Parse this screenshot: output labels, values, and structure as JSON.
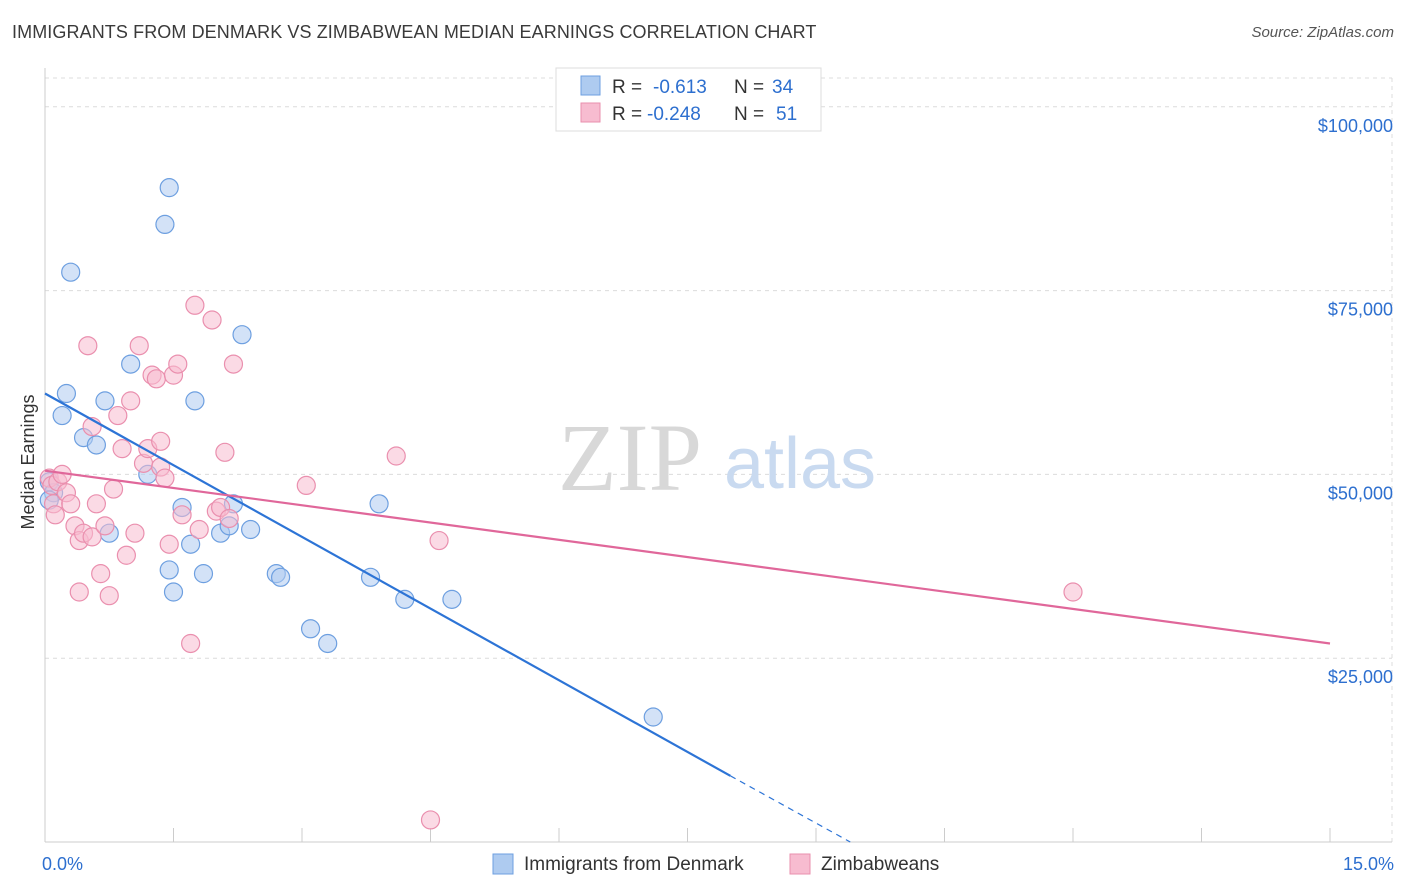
{
  "title": "IMMIGRANTS FROM DENMARK VS ZIMBABWEAN MEDIAN EARNINGS CORRELATION CHART",
  "source": "Source: ZipAtlas.com",
  "watermark": {
    "zip": "ZIP",
    "atlas": "atlas"
  },
  "chart_data": {
    "type": "scatter",
    "ylabel": "Median Earnings",
    "xlim": [
      0,
      15
    ],
    "ylim": [
      0,
      105000
    ],
    "x_ticks": [
      {
        "value": 0,
        "label": "0.0%"
      },
      {
        "value": 15,
        "label": "15.0%"
      }
    ],
    "y_ticks": [
      {
        "value": 25000,
        "label": "$25,000"
      },
      {
        "value": 50000,
        "label": "$50,000"
      },
      {
        "value": 75000,
        "label": "$75,000"
      },
      {
        "value": 100000,
        "label": "$100,000"
      }
    ],
    "grid": true,
    "legend_position": "top-center",
    "stats": [
      {
        "r_label": "R =",
        "r_value": "-0.613",
        "n_label": "N =",
        "n_value": "34"
      },
      {
        "r_label": "R =",
        "r_value": "-0.248",
        "n_label": "N =",
        "n_value": "51"
      }
    ],
    "series": [
      {
        "name": "Immigrants from Denmark",
        "fill": "#aecbf0",
        "stroke": "#6d9fe0",
        "line_color": "#2d74d6",
        "trend": {
          "x0": 0,
          "y0": 61000,
          "x1": 8.0,
          "y1": 9000,
          "dash_x1": 9.4,
          "dash_y1": 0
        },
        "points": [
          [
            0.05,
            49000
          ],
          [
            0.1,
            47500
          ],
          [
            0.05,
            46500
          ],
          [
            0.2,
            58000
          ],
          [
            0.25,
            61000
          ],
          [
            0.3,
            77500
          ],
          [
            0.45,
            55000
          ],
          [
            0.6,
            54000
          ],
          [
            0.7,
            60000
          ],
          [
            0.75,
            42000
          ],
          [
            1.0,
            65000
          ],
          [
            1.2,
            50000
          ],
          [
            1.4,
            84000
          ],
          [
            1.5,
            34000
          ],
          [
            1.45,
            37000
          ],
          [
            1.45,
            89000
          ],
          [
            1.6,
            45500
          ],
          [
            1.7,
            40500
          ],
          [
            1.75,
            60000
          ],
          [
            1.85,
            36500
          ],
          [
            2.05,
            42000
          ],
          [
            2.2,
            46000
          ],
          [
            2.15,
            43000
          ],
          [
            2.3,
            69000
          ],
          [
            2.4,
            42500
          ],
          [
            2.7,
            36500
          ],
          [
            2.75,
            36000
          ],
          [
            3.1,
            29000
          ],
          [
            3.3,
            27000
          ],
          [
            3.8,
            36000
          ],
          [
            3.9,
            46000
          ],
          [
            4.2,
            33000
          ],
          [
            4.75,
            33000
          ],
          [
            7.1,
            17000
          ]
        ]
      },
      {
        "name": "Zimbabweans",
        "fill": "#f7bcd0",
        "stroke": "#ea8fae",
        "line_color": "#e0679a",
        "trend": {
          "x0": 0,
          "y0": 50500,
          "x1": 15,
          "y1": 27000
        },
        "points": [
          [
            0.05,
            49500
          ],
          [
            0.08,
            48500
          ],
          [
            0.1,
            46000
          ],
          [
            0.12,
            44500
          ],
          [
            0.15,
            49000
          ],
          [
            0.2,
            50000
          ],
          [
            0.25,
            47500
          ],
          [
            0.3,
            46000
          ],
          [
            0.35,
            43000
          ],
          [
            0.4,
            41000
          ],
          [
            0.4,
            34000
          ],
          [
            0.45,
            42000
          ],
          [
            0.5,
            67500
          ],
          [
            0.55,
            56500
          ],
          [
            0.55,
            41500
          ],
          [
            0.6,
            46000
          ],
          [
            0.65,
            36500
          ],
          [
            0.7,
            43000
          ],
          [
            0.75,
            33500
          ],
          [
            0.8,
            48000
          ],
          [
            0.85,
            58000
          ],
          [
            0.9,
            53500
          ],
          [
            0.95,
            39000
          ],
          [
            1.0,
            60000
          ],
          [
            1.05,
            42000
          ],
          [
            1.1,
            67500
          ],
          [
            1.15,
            51500
          ],
          [
            1.2,
            53500
          ],
          [
            1.25,
            63500
          ],
          [
            1.3,
            63000
          ],
          [
            1.35,
            54500
          ],
          [
            1.35,
            51000
          ],
          [
            1.4,
            49500
          ],
          [
            1.45,
            40500
          ],
          [
            1.5,
            63500
          ],
          [
            1.55,
            65000
          ],
          [
            1.6,
            44500
          ],
          [
            1.7,
            27000
          ],
          [
            1.75,
            73000
          ],
          [
            1.8,
            42500
          ],
          [
            1.95,
            71000
          ],
          [
            2.0,
            45000
          ],
          [
            2.05,
            45500
          ],
          [
            2.1,
            53000
          ],
          [
            2.15,
            44000
          ],
          [
            2.2,
            65000
          ],
          [
            3.05,
            48500
          ],
          [
            4.1,
            52500
          ],
          [
            4.5,
            3000
          ],
          [
            4.6,
            41000
          ],
          [
            12.0,
            34000
          ]
        ]
      }
    ]
  }
}
